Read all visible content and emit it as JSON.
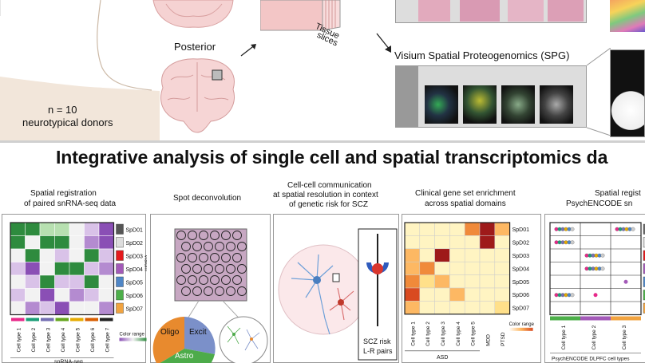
{
  "top": {
    "posterior_label": "Posterior",
    "donors_count": "n = 10",
    "donors_desc": "neurotypical donors",
    "tissue_label_1": "Tissue",
    "tissue_label_2": "slices",
    "spg_title": "Visium Spatial Proteogenomics (SPG)"
  },
  "main_title": "Integrative analysis of single cell and spatial transcriptomics da",
  "panels": {
    "registration": {
      "title_1": "Spatial registration",
      "title_2": "of paired snRNA-seq data",
      "domains": [
        "SpD01",
        "SpD02",
        "SpD03",
        "SpD04",
        "SpD05",
        "SpD06",
        "SpD07"
      ],
      "domain_colors": [
        "#555555",
        "#dddddd",
        "#e41a1c",
        "#a35ab8",
        "#4f86c6",
        "#4daf4a",
        "#f1a340"
      ],
      "cell_types": [
        "Cell type 1",
        "Cell type 2",
        "Cell type 3",
        "Cell type 4",
        "Cell type 5",
        "Cell type 6",
        "Cell type 7"
      ],
      "cell_type_colors": [
        "#e7298a",
        "#1b9e77",
        "#7570b3",
        "#66a61e",
        "#e6ab02",
        "#d95f02",
        "#222222"
      ],
      "visium_label": "Visium",
      "xaxis_label": "snRNA-seq",
      "legend_label": "Color range"
    },
    "deconvolution": {
      "title": "Spot deconvolution",
      "slices": [
        "Oligo",
        "Excit",
        "Astro"
      ],
      "slice_colors": [
        "#e88a2e",
        "#7b90c9",
        "#4dab4a"
      ]
    },
    "communication": {
      "title_1": "Cell-cell communication",
      "title_2": "at spatial resolution in context",
      "title_3": "of genetic risk for SCZ",
      "box_label_1": "SCZ risk",
      "box_label_2": "L-R pairs"
    },
    "enrichment": {
      "title_1": "Clinical gene set enrichment",
      "title_2": "across spatial domains",
      "domains": [
        "SpD01",
        "SpD02",
        "SpD03",
        "SpD04",
        "SpD05",
        "SpD06",
        "SpD07"
      ],
      "columns": [
        "Cell type 1",
        "Cell type 2",
        "Cell type 3",
        "Cell type 4",
        "Cell type 5",
        "MDD",
        "PTSD"
      ],
      "group_label": "ASD",
      "legend_label": "Color range"
    },
    "psychencode": {
      "title_1": "Spatial regist",
      "title_2": "PsychENCODE sn",
      "columns": [
        "Cell type 1",
        "Cell type 2",
        "Cell type 3"
      ],
      "footer": "PsychENCODE DLPFC cell types"
    }
  }
}
